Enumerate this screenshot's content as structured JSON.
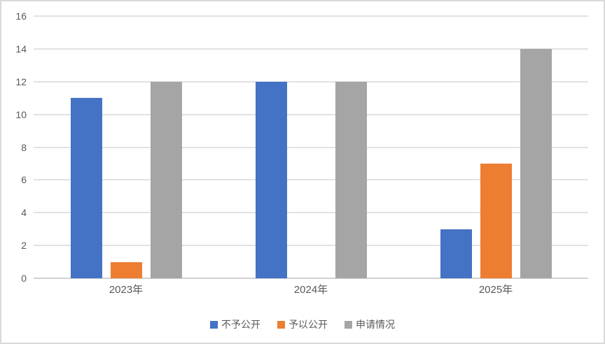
{
  "chart_data": {
    "type": "bar",
    "title": "",
    "xlabel": "",
    "ylabel": "",
    "categories": [
      "2023年",
      "2024年",
      "2025年"
    ],
    "series": [
      {
        "name": "不予公开",
        "color": "#4472C4",
        "values": [
          11,
          12,
          3
        ]
      },
      {
        "name": "予以公开",
        "color": "#ED7D31",
        "values": [
          1,
          0,
          7
        ]
      },
      {
        "name": "申请情况",
        "color": "#A5A5A5",
        "values": [
          12,
          12,
          14
        ]
      }
    ],
    "ylim": [
      0,
      16
    ],
    "ytick_interval": 2,
    "yticks": [
      0,
      2,
      4,
      6,
      8,
      10,
      12,
      14,
      16
    ],
    "grid": true,
    "legend_position": "bottom"
  },
  "colors": {
    "gridline": "#e2e2e2",
    "axis_line": "#d2d2d2",
    "tick_label": "#595959",
    "frame_border": "#d9d9d9",
    "background": "#ffffff"
  }
}
